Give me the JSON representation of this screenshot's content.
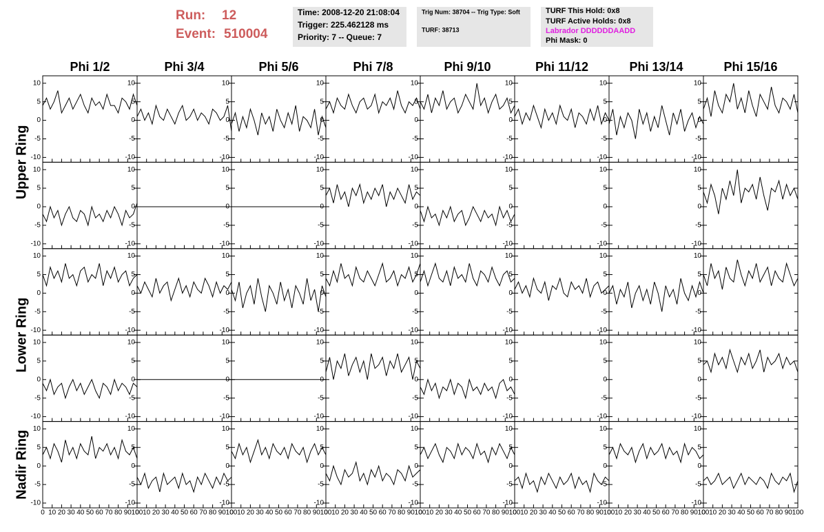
{
  "header": {
    "run_label": "Run:",
    "run": 12,
    "event_label": "Event:",
    "event": 510004,
    "box1": [
      "Time: 2008-12-20 21:08:04",
      "Trigger: 225.462128 ms",
      "Priority: 7 -- Queue: 7"
    ],
    "box2": [
      "Trig Num: 38704 -- Trig Type: Soft",
      "TURF: 38713"
    ],
    "box3": [
      "TURF This Hold: 0x8",
      "TURF Active Holds: 0x8",
      "Labrador DDDDDDAADD",
      "Phi Mask: 0"
    ]
  },
  "columns": [
    "Phi 1/2",
    "Phi 3/4",
    "Phi 5/6",
    "Phi 7/8",
    "Phi 9/10",
    "Phi 11/12",
    "Phi 13/14",
    "Phi 15/16"
  ],
  "rings": [
    "Upper Ring",
    "Lower Ring",
    "Nadir Ring"
  ],
  "chart_data": {
    "type": "line",
    "color": "#000000",
    "xlim": [
      0,
      100
    ],
    "ylim": [
      -11.3,
      12
    ],
    "xticks": [
      0,
      10,
      20,
      30,
      40,
      50,
      60,
      70,
      80,
      90,
      100
    ],
    "yticks": [
      -10,
      -5,
      0,
      5,
      10
    ],
    "x": [
      0,
      4,
      8,
      12,
      16,
      20,
      24,
      28,
      32,
      36,
      40,
      44,
      48,
      52,
      56,
      60,
      64,
      68,
      72,
      76,
      80,
      84,
      88,
      92,
      96,
      100
    ],
    "rows": [
      [
        [
          4,
          6,
          3,
          5,
          8,
          2,
          4,
          6,
          3,
          5,
          7,
          4,
          2,
          6,
          4,
          5,
          3,
          7,
          4,
          4,
          2,
          6,
          5,
          3,
          7,
          4
        ],
        [
          1,
          3,
          0,
          2,
          -1,
          4,
          1,
          0,
          3,
          1,
          -1,
          2,
          4,
          0,
          1,
          3,
          0,
          2,
          1,
          -1,
          3,
          2,
          0,
          1,
          4,
          -3
        ],
        [
          -1,
          2,
          -3,
          1,
          -2,
          3,
          0,
          -4,
          2,
          -1,
          1,
          -3,
          3,
          0,
          -2,
          2,
          -1,
          4,
          -3,
          1,
          0,
          -2,
          3,
          -4,
          1,
          -2
        ],
        [
          3,
          5,
          2,
          6,
          4,
          3,
          7,
          4,
          2,
          5,
          6,
          3,
          4,
          7,
          2,
          5,
          4,
          6,
          3,
          8,
          4,
          2,
          5,
          4,
          6,
          3
        ],
        [
          5,
          3,
          7,
          2,
          6,
          4,
          8,
          3,
          5,
          6,
          2,
          4,
          7,
          5,
          3,
          10,
          4,
          6,
          2,
          5,
          7,
          3,
          4,
          6,
          2,
          4
        ],
        [
          1,
          3,
          -1,
          2,
          0,
          4,
          1,
          -2,
          3,
          0,
          2,
          -1,
          4,
          1,
          0,
          3,
          -2,
          2,
          1,
          -1,
          3,
          0,
          4,
          -1,
          2,
          0
        ],
        [
          -1,
          3,
          -4,
          1,
          -2,
          2,
          0,
          -5,
          3,
          -1,
          2,
          -3,
          1,
          -2,
          4,
          0,
          -4,
          2,
          -1,
          3,
          -3,
          0,
          2,
          -2,
          1,
          -1
        ],
        [
          3,
          6,
          1,
          8,
          4,
          2,
          7,
          5,
          10,
          3,
          6,
          2,
          8,
          4,
          1,
          7,
          5,
          3,
          9,
          4,
          2,
          6,
          5,
          3,
          7,
          2
        ]
      ],
      [
        [
          -2,
          -4,
          0,
          -3,
          -1,
          -5,
          -2,
          0,
          -3,
          -4,
          -1,
          -2,
          -5,
          0,
          -3,
          -2,
          -4,
          -1,
          -3,
          0,
          -2,
          -5,
          -1,
          -3,
          -2,
          1
        ],
        [
          0,
          0,
          0,
          0,
          0,
          0,
          0,
          0,
          0,
          0,
          0,
          0,
          0,
          0,
          0,
          0,
          0,
          0,
          0,
          0,
          0,
          0,
          0,
          0,
          0,
          0
        ],
        [
          0,
          0,
          0,
          0,
          0,
          0,
          0,
          0,
          0,
          0,
          0,
          0,
          0,
          0,
          0,
          0,
          0,
          0,
          0,
          0,
          0,
          0,
          0,
          0,
          0,
          0
        ],
        [
          3,
          5,
          1,
          6,
          2,
          4,
          0,
          5,
          3,
          6,
          1,
          4,
          2,
          5,
          3,
          6,
          0,
          4,
          2,
          5,
          3,
          1,
          6,
          2,
          4,
          3
        ],
        [
          -1,
          -4,
          0,
          -3,
          -2,
          -5,
          -1,
          -3,
          0,
          -4,
          -2,
          -1,
          -5,
          -3,
          0,
          -2,
          -4,
          -1,
          -3,
          -2,
          -5,
          0,
          -3,
          -1,
          -4,
          -2
        ],
        [
          null,
          null,
          null,
          null,
          null,
          null,
          null,
          null,
          null,
          null,
          null,
          null,
          null,
          null,
          null,
          null,
          null,
          null,
          null,
          null,
          null,
          null,
          null,
          null,
          null,
          null
        ],
        [
          null,
          null,
          null,
          null,
          null,
          null,
          null,
          null,
          null,
          null,
          null,
          null,
          null,
          null,
          null,
          null,
          null,
          null,
          null,
          null,
          null,
          null,
          null,
          null,
          null,
          null
        ],
        [
          4,
          1,
          6,
          3,
          -2,
          5,
          2,
          7,
          3,
          10,
          1,
          5,
          4,
          6,
          2,
          8,
          3,
          -1,
          5,
          4,
          7,
          2,
          6,
          3,
          5,
          2
        ]
      ],
      [
        [
          5,
          2,
          7,
          4,
          6,
          3,
          8,
          4,
          5,
          2,
          6,
          7,
          3,
          5,
          4,
          8,
          2,
          6,
          4,
          7,
          3,
          5,
          6,
          2,
          4,
          5
        ],
        [
          2,
          0,
          3,
          1,
          -1,
          4,
          0,
          2,
          3,
          -2,
          1,
          4,
          0,
          2,
          -1,
          3,
          1,
          0,
          4,
          2,
          -1,
          3,
          0,
          2,
          1,
          3
        ],
        [
          1,
          -2,
          3,
          -4,
          0,
          2,
          -3,
          4,
          -1,
          -5,
          2,
          0,
          -3,
          3,
          -2,
          1,
          -4,
          2,
          0,
          -3,
          4,
          -2,
          1,
          -5,
          2,
          -1
        ],
        [
          4,
          2,
          6,
          3,
          8,
          4,
          5,
          2,
          7,
          4,
          3,
          6,
          4,
          2,
          5,
          8,
          3,
          4,
          6,
          2,
          5,
          4,
          7,
          3,
          5,
          8
        ],
        [
          3,
          6,
          2,
          5,
          8,
          4,
          3,
          6,
          2,
          7,
          4,
          5,
          3,
          8,
          4,
          2,
          6,
          5,
          3,
          7,
          4,
          2,
          5,
          6,
          3,
          4
        ],
        [
          1,
          3,
          0,
          2,
          -1,
          4,
          1,
          0,
          3,
          -2,
          2,
          1,
          4,
          0,
          -1,
          3,
          1,
          2,
          0,
          4,
          -1,
          2,
          3,
          0,
          1,
          2
        ],
        [
          0,
          2,
          -3,
          1,
          -1,
          3,
          -4,
          0,
          2,
          -2,
          1,
          -3,
          3,
          0,
          -5,
          2,
          -1,
          1,
          -3,
          4,
          0,
          -2,
          2,
          -1,
          3,
          0
        ],
        [
          5,
          2,
          8,
          4,
          6,
          1,
          7,
          4,
          3,
          9,
          5,
          2,
          6,
          4,
          8,
          3,
          5,
          7,
          2,
          6,
          4,
          3,
          8,
          5,
          2,
          4
        ]
      ],
      [
        [
          -1,
          -3,
          0,
          -4,
          -2,
          -1,
          -5,
          -2,
          0,
          -3,
          -1,
          -4,
          -2,
          0,
          -3,
          -5,
          -1,
          -2,
          -4,
          0,
          -3,
          -1,
          -2,
          -4,
          -1,
          -2
        ],
        [
          0,
          0,
          0,
          0,
          0,
          0,
          0,
          0,
          0,
          0,
          0,
          0,
          0,
          0,
          0,
          0,
          0,
          0,
          0,
          0,
          0,
          0,
          0,
          0,
          0,
          0
        ],
        [
          0,
          0,
          0,
          0,
          0,
          0,
          0,
          0,
          0,
          0,
          0,
          0,
          0,
          0,
          0,
          0,
          0,
          0,
          0,
          0,
          0,
          0,
          0,
          0,
          0,
          0
        ],
        [
          2,
          6,
          0,
          5,
          3,
          7,
          1,
          4,
          6,
          2,
          5,
          0,
          7,
          3,
          4,
          6,
          1,
          5,
          3,
          7,
          2,
          4,
          6,
          0,
          5,
          3
        ],
        [
          -2,
          -4,
          0,
          -3,
          -1,
          -5,
          -2,
          -3,
          0,
          -4,
          -1,
          -2,
          -5,
          0,
          -3,
          -2,
          -4,
          -1,
          -3,
          -2,
          -5,
          -1,
          0,
          -3,
          -2,
          -4
        ],
        [
          null,
          null,
          null,
          null,
          null,
          null,
          null,
          null,
          null,
          null,
          null,
          null,
          null,
          null,
          null,
          null,
          null,
          null,
          null,
          null,
          null,
          null,
          null,
          null,
          null,
          null
        ],
        [
          null,
          null,
          null,
          null,
          null,
          null,
          null,
          null,
          null,
          null,
          null,
          null,
          null,
          null,
          null,
          null,
          null,
          null,
          null,
          null,
          null,
          null,
          null,
          null,
          null,
          null
        ],
        [
          4,
          5,
          2,
          7,
          4,
          6,
          3,
          8,
          5,
          2,
          6,
          4,
          7,
          3,
          5,
          8,
          2,
          6,
          4,
          5,
          7,
          3,
          6,
          4,
          5,
          2
        ]
      ],
      [
        [
          3,
          5,
          2,
          6,
          4,
          1,
          7,
          3,
          5,
          2,
          6,
          4,
          3,
          8,
          2,
          5,
          4,
          6,
          3,
          5,
          2,
          7,
          4,
          3,
          5,
          2
        ],
        [
          -3,
          -5,
          -2,
          -6,
          -4,
          -3,
          -7,
          -2,
          -5,
          -4,
          -3,
          -6,
          -2,
          -5,
          -4,
          -7,
          -3,
          -5,
          -2,
          -4,
          -6,
          -3,
          -5,
          -2,
          -4,
          -3
        ],
        [
          4,
          2,
          6,
          3,
          5,
          1,
          4,
          7,
          3,
          5,
          2,
          6,
          4,
          3,
          5,
          2,
          6,
          4,
          3,
          5,
          1,
          4,
          6,
          3,
          5,
          3
        ],
        [
          -2,
          -4,
          0,
          -3,
          -5,
          -1,
          -3,
          -2,
          1,
          -4,
          -2,
          -5,
          -1,
          -3,
          0,
          -4,
          -2,
          -3,
          -5,
          -1,
          -2,
          -4,
          0,
          -3,
          -2,
          -1
        ],
        [
          3,
          5,
          2,
          4,
          6,
          3,
          1,
          5,
          4,
          2,
          6,
          3,
          5,
          4,
          2,
          6,
          3,
          4,
          1,
          5,
          3,
          6,
          4,
          2,
          5,
          3
        ],
        [
          -4,
          -3,
          -6,
          -2,
          -5,
          -4,
          -7,
          -3,
          -5,
          -2,
          -4,
          -6,
          -3,
          -5,
          -4,
          -2,
          -6,
          -3,
          -5,
          -4,
          -7,
          -2,
          -4,
          -5,
          -3,
          -4
        ],
        [
          3,
          5,
          2,
          6,
          4,
          3,
          5,
          1,
          4,
          6,
          2,
          5,
          3,
          4,
          6,
          2,
          5,
          3,
          4,
          1,
          6,
          3,
          5,
          4,
          2,
          3
        ],
        [
          -4,
          -3,
          -5,
          -4,
          -2,
          -5,
          -4,
          -3,
          -6,
          -4,
          -2,
          -5,
          -3,
          -4,
          -5,
          -3,
          -4,
          -6,
          -2,
          -4,
          -5,
          -3,
          -4,
          -2,
          -7,
          -4
        ]
      ]
    ]
  }
}
